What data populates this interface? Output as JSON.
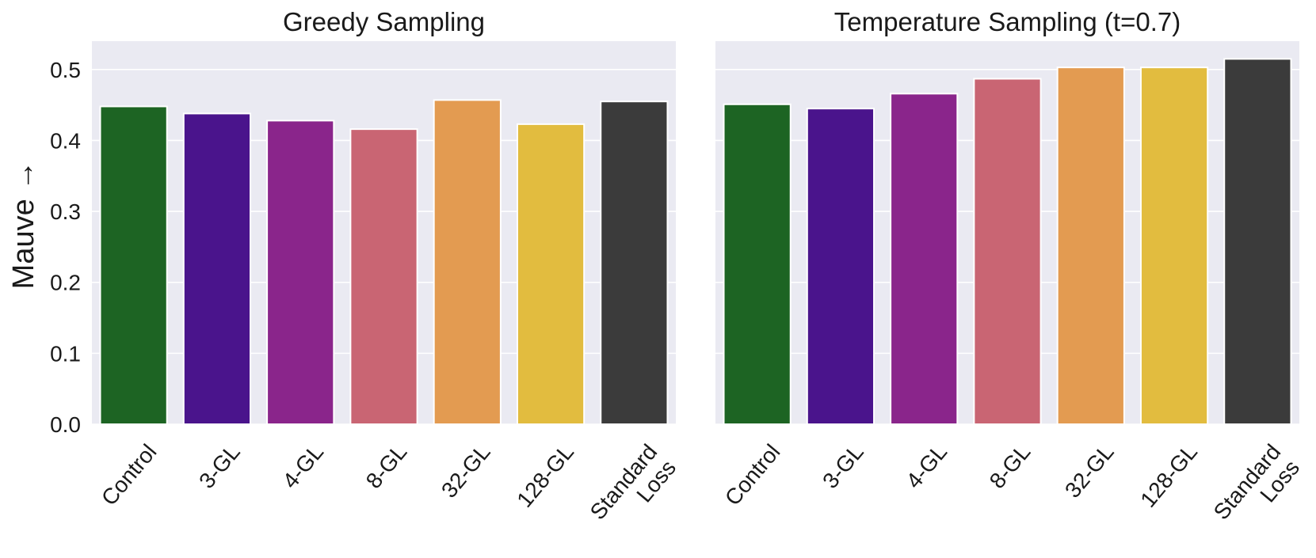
{
  "chart_data": [
    {
      "type": "bar",
      "title": "Greedy Sampling",
      "ylabel": "Mauve →",
      "ylim": [
        0,
        0.54
      ],
      "yticks": [
        "0.0",
        "0.1",
        "0.2",
        "0.3",
        "0.4",
        "0.5"
      ],
      "grid": true,
      "categories": [
        [
          "Control"
        ],
        [
          "3-GL"
        ],
        [
          "4-GL"
        ],
        [
          "8-GL"
        ],
        [
          "32-GL"
        ],
        [
          "128-GL"
        ],
        [
          "Standard",
          "Loss"
        ]
      ],
      "values": [
        0.448,
        0.438,
        0.428,
        0.416,
        0.457,
        0.423,
        0.455
      ],
      "colors": [
        "#1d6423",
        "#4a148c",
        "#8a258b",
        "#c96573",
        "#e39b51",
        "#e2bc3f",
        "#3b3b3b"
      ]
    },
    {
      "type": "bar",
      "title": "Temperature Sampling (t=0.7)",
      "ylabel": "",
      "ylim": [
        0,
        0.54
      ],
      "yticks": [],
      "grid": true,
      "categories": [
        [
          "Control"
        ],
        [
          "3-GL"
        ],
        [
          "4-GL"
        ],
        [
          "8-GL"
        ],
        [
          "32-GL"
        ],
        [
          "128-GL"
        ],
        [
          "Standard",
          "Loss"
        ]
      ],
      "values": [
        0.451,
        0.445,
        0.466,
        0.487,
        0.503,
        0.503,
        0.515
      ],
      "colors": [
        "#1d6423",
        "#4a148c",
        "#8a258b",
        "#c96573",
        "#e39b51",
        "#e2bc3f",
        "#3b3b3b"
      ]
    }
  ]
}
